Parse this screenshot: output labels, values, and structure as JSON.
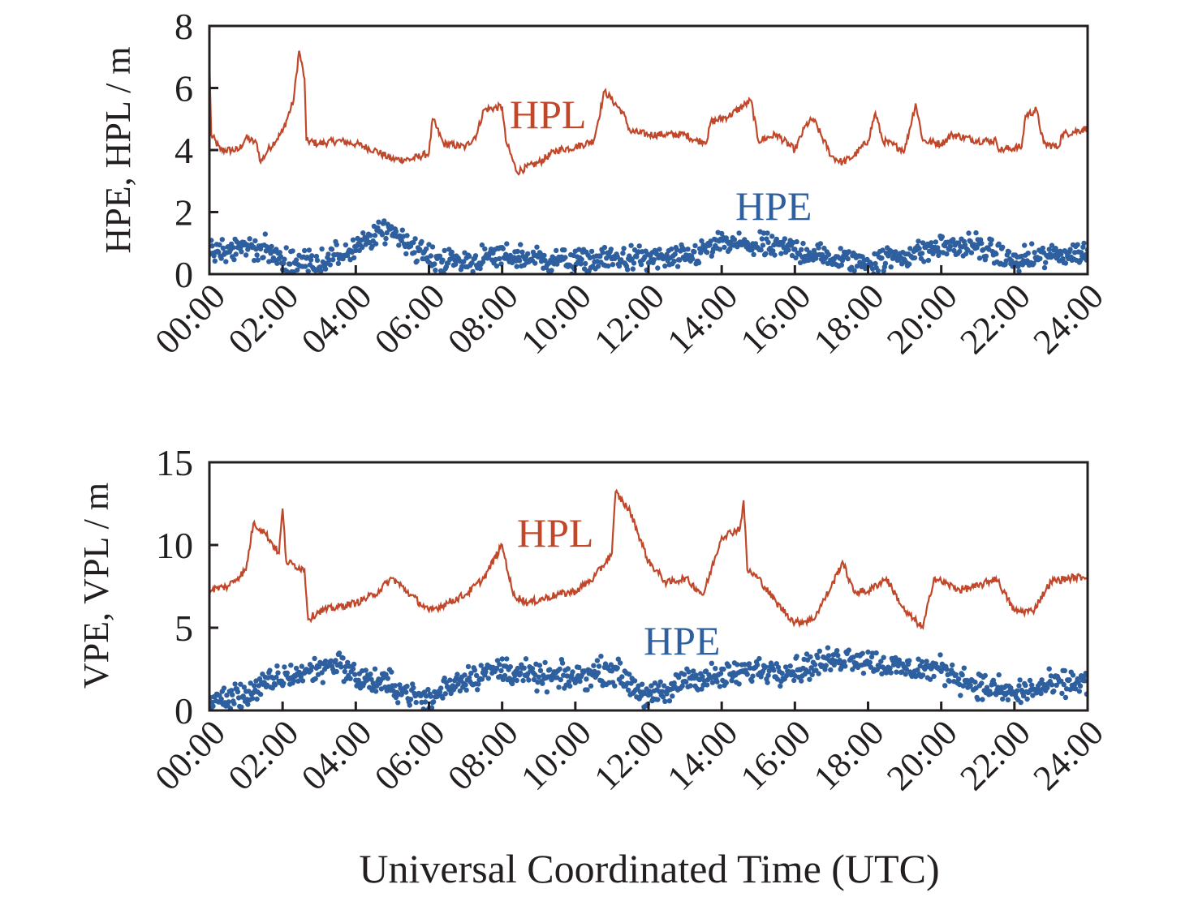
{
  "colors": {
    "hpl": "#c0472a",
    "hpe": "#2e5f9f",
    "axis": "#231f20"
  },
  "chart_data": [
    {
      "type": "line+scatter",
      "ylabel": "HPE, HPL / m",
      "ylim": [
        0,
        8
      ],
      "yticks": [
        "0",
        "2",
        "4",
        "6",
        "8"
      ],
      "ytick_values": [
        0,
        2,
        4,
        6,
        8
      ],
      "xlim": [
        0,
        24
      ],
      "xticks": [
        "00:00",
        "02:00",
        "04:00",
        "06:00",
        "08:00",
        "10:00",
        "12:00",
        "14:00",
        "16:00",
        "18:00",
        "20:00",
        "22:00",
        "24:00"
      ],
      "annotations": {
        "line": "HPL",
        "scatter": "HPE"
      },
      "series": [
        {
          "name": "HPL",
          "kind": "line",
          "points": [
            [
              0,
              6.9
            ],
            [
              0.05,
              4.5
            ],
            [
              0.3,
              4.0
            ],
            [
              0.8,
              4.0
            ],
            [
              1.0,
              4.4
            ],
            [
              1.3,
              4.2
            ],
            [
              1.4,
              3.6
            ],
            [
              1.6,
              4.0
            ],
            [
              2.0,
              4.6
            ],
            [
              2.3,
              5.6
            ],
            [
              2.45,
              7.2
            ],
            [
              2.6,
              6.3
            ],
            [
              2.65,
              4.3
            ],
            [
              3,
              4.2
            ],
            [
              3.5,
              4.3
            ],
            [
              4,
              4.2
            ],
            [
              4.5,
              4.0
            ],
            [
              5,
              3.7
            ],
            [
              5.5,
              3.7
            ],
            [
              6,
              3.9
            ],
            [
              6.1,
              5.0
            ],
            [
              6.4,
              4.2
            ],
            [
              7,
              4.1
            ],
            [
              7.3,
              4.5
            ],
            [
              7.5,
              5.3
            ],
            [
              8,
              5.4
            ],
            [
              8.1,
              4.3
            ],
            [
              8.4,
              3.3
            ],
            [
              9,
              3.6
            ],
            [
              9.5,
              4.0
            ],
            [
              10,
              4.1
            ],
            [
              10.5,
              4.3
            ],
            [
              10.8,
              5.9
            ],
            [
              11.3,
              5.2
            ],
            [
              11.5,
              4.6
            ],
            [
              12,
              4.5
            ],
            [
              13,
              4.5
            ],
            [
              13.3,
              4.3
            ],
            [
              13.6,
              4.3
            ],
            [
              13.7,
              4.9
            ],
            [
              14.2,
              5.1
            ],
            [
              14.8,
              5.6
            ],
            [
              15.0,
              4.3
            ],
            [
              15.5,
              4.5
            ],
            [
              16.0,
              4.0
            ],
            [
              16.3,
              4.8
            ],
            [
              16.5,
              5.0
            ],
            [
              17.0,
              3.8
            ],
            [
              17.3,
              3.6
            ],
            [
              17.6,
              3.8
            ],
            [
              18,
              4.3
            ],
            [
              18.2,
              5.2
            ],
            [
              18.4,
              4.3
            ],
            [
              19,
              4.0
            ],
            [
              19.3,
              5.5
            ],
            [
              19.5,
              4.3
            ],
            [
              20,
              4.2
            ],
            [
              20.3,
              4.5
            ],
            [
              21,
              4.3
            ],
            [
              21.5,
              4.3
            ],
            [
              21.6,
              4.0
            ],
            [
              22.2,
              4.1
            ],
            [
              22.3,
              5.1
            ],
            [
              22.6,
              5.3
            ],
            [
              22.8,
              4.2
            ],
            [
              23.2,
              4.1
            ],
            [
              23.3,
              4.5
            ],
            [
              24,
              4.7
            ]
          ]
        },
        {
          "name": "HPE",
          "kind": "scatter",
          "spread": 0.3,
          "trend": [
            [
              0,
              0.6
            ],
            [
              1,
              0.9
            ],
            [
              1.5,
              0.8
            ],
            [
              2,
              0.4
            ],
            [
              3,
              0.4
            ],
            [
              4,
              0.8
            ],
            [
              4.9,
              1.5
            ],
            [
              6,
              0.5
            ],
            [
              7,
              0.4
            ],
            [
              8,
              0.6
            ],
            [
              9,
              0.5
            ],
            [
              10,
              0.4
            ],
            [
              11,
              0.5
            ],
            [
              12,
              0.5
            ],
            [
              13,
              0.5
            ],
            [
              14,
              1.0
            ],
            [
              15,
              0.9
            ],
            [
              16,
              0.8
            ],
            [
              17,
              0.5
            ],
            [
              18,
              0.4
            ],
            [
              19,
              0.6
            ],
            [
              20,
              0.9
            ],
            [
              21,
              0.9
            ],
            [
              22,
              0.4
            ],
            [
              23,
              0.6
            ],
            [
              24,
              0.7
            ]
          ]
        }
      ]
    },
    {
      "type": "line+scatter",
      "ylabel": "VPE, VPL / m",
      "ylim": [
        0,
        15
      ],
      "yticks": [
        "0",
        "5",
        "10",
        "15"
      ],
      "ytick_values": [
        0,
        5,
        10,
        15
      ],
      "xlim": [
        0,
        24
      ],
      "xticks": [
        "00:00",
        "02:00",
        "04:00",
        "06:00",
        "08:00",
        "10:00",
        "12:00",
        "14:00",
        "16:00",
        "18:00",
        "20:00",
        "22:00",
        "24:00"
      ],
      "xlabel": "Universal Coordinated Time (UTC)",
      "annotations": {
        "line": "HPL",
        "scatter": "HPE"
      },
      "series": [
        {
          "name": "HPL",
          "kind": "line",
          "points": [
            [
              0,
              7.3
            ],
            [
              0.5,
              7.5
            ],
            [
              1.0,
              8.5
            ],
            [
              1.2,
              11.3
            ],
            [
              1.5,
              10.8
            ],
            [
              1.9,
              9.5
            ],
            [
              2.0,
              12.2
            ],
            [
              2.1,
              9.0
            ],
            [
              2.6,
              8.5
            ],
            [
              2.7,
              5.5
            ],
            [
              3,
              6.0
            ],
            [
              4,
              6.5
            ],
            [
              4.5,
              7.0
            ],
            [
              5,
              8.0
            ],
            [
              5.5,
              7.0
            ],
            [
              6,
              6.0
            ],
            [
              6.5,
              6.5
            ],
            [
              7,
              7.0
            ],
            [
              7.5,
              8.0
            ],
            [
              8,
              10.0
            ],
            [
              8.3,
              7.0
            ],
            [
              8.7,
              6.5
            ],
            [
              9.5,
              7.0
            ],
            [
              10,
              7.2
            ],
            [
              10.5,
              8.0
            ],
            [
              11,
              9.5
            ],
            [
              11.1,
              13.2
            ],
            [
              11.5,
              12.0
            ],
            [
              12,
              9.0
            ],
            [
              12.5,
              7.7
            ],
            [
              13,
              8.0
            ],
            [
              13.5,
              7.0
            ],
            [
              14,
              10.5
            ],
            [
              14.5,
              11.0
            ],
            [
              14.6,
              12.7
            ],
            [
              14.7,
              8.5
            ],
            [
              15,
              8.0
            ],
            [
              15.5,
              6.5
            ],
            [
              16,
              5.3
            ],
            [
              16.5,
              5.5
            ],
            [
              17,
              7.5
            ],
            [
              17.3,
              9.0
            ],
            [
              17.6,
              7.2
            ],
            [
              18,
              7.2
            ],
            [
              18.5,
              8.0
            ],
            [
              19,
              6.0
            ],
            [
              19.5,
              5.0
            ],
            [
              19.8,
              8.0
            ],
            [
              20.5,
              7.3
            ],
            [
              21,
              7.5
            ],
            [
              21.5,
              8.0
            ],
            [
              22,
              6.0
            ],
            [
              22.5,
              6.0
            ],
            [
              23,
              7.8
            ],
            [
              23.5,
              8.0
            ],
            [
              24,
              8.1
            ]
          ]
        },
        {
          "name": "HPE",
          "kind": "scatter",
          "spread": 0.6,
          "trend": [
            [
              0,
              0.5
            ],
            [
              1,
              1.0
            ],
            [
              2,
              2.0
            ],
            [
              3,
              2.5
            ],
            [
              3.5,
              3.0
            ],
            [
              4,
              2.0
            ],
            [
              5,
              1.5
            ],
            [
              6,
              0.5
            ],
            [
              6.5,
              1.5
            ],
            [
              7,
              2.0
            ],
            [
              8,
              2.5
            ],
            [
              9,
              2.0
            ],
            [
              10,
              2.0
            ],
            [
              11,
              2.5
            ],
            [
              12,
              0.8
            ],
            [
              12.5,
              1.0
            ],
            [
              13,
              2.0
            ],
            [
              14,
              2.0
            ],
            [
              15,
              2.5
            ],
            [
              16,
              2.5
            ],
            [
              17,
              3.0
            ],
            [
              17.5,
              3.3
            ],
            [
              18,
              3.0
            ],
            [
              19,
              2.5
            ],
            [
              20,
              2.5
            ],
            [
              21,
              1.5
            ],
            [
              22,
              1.0
            ],
            [
              23,
              1.5
            ],
            [
              24,
              1.8
            ]
          ]
        }
      ]
    }
  ]
}
